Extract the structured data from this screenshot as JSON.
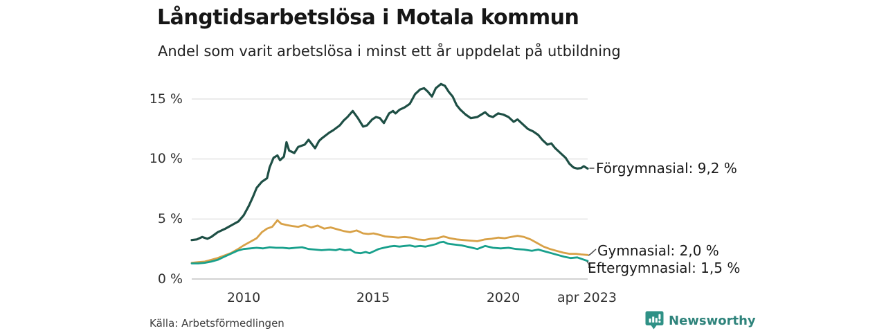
{
  "header": {
    "title": "Långtidsarbetslösa i Motala kommun",
    "subtitle": "Andel som varit arbetslösa i minst ett år uppdelat på utbildning"
  },
  "footer": {
    "source": "Källa: Arbetsförmedlingen",
    "brand": {
      "name": "Newsworthy",
      "icon": "newsworthy-chart-bubble-icon",
      "text_color": "#2e837b",
      "icon_color": "#2f9186"
    }
  },
  "chart_data": {
    "type": "line",
    "title": "Långtidsarbetslösa i Motala kommun",
    "subtitle": "Andel som varit arbetslösa i minst ett år uppdelat på utbildning",
    "xlabel": "",
    "ylabel": "",
    "unit": "%",
    "grid": true,
    "legend_position": "end-of-line labels, right of plot",
    "x_axis": {
      "range": [
        2008.0,
        2023.25
      ],
      "tick_labels": [
        "2010",
        "2015",
        "2020",
        "apr 2023"
      ],
      "tick_values": [
        2010,
        2015,
        2020,
        2023.25
      ]
    },
    "y_axis": {
      "range": [
        0,
        15
      ],
      "tick_labels_top_to_bottom": [
        "15 %",
        "10 %",
        "5 %",
        "0 %"
      ],
      "grid_values": [
        15,
        10,
        5,
        0
      ]
    },
    "style": {
      "grid_color": "#e4e4e4",
      "axis_line_color": "#c4c4c4",
      "background": "#ffffff"
    },
    "series": [
      {
        "name": "Förgymnasial",
        "end_label": "Förgymnasial: 9,2 %",
        "end_value": "9,2 %",
        "color": "#1e4f45",
        "stroke_width": 3.2,
        "points": [
          [
            2008.0,
            3.25
          ],
          [
            2008.2,
            3.3
          ],
          [
            2008.4,
            3.5
          ],
          [
            2008.6,
            3.35
          ],
          [
            2008.75,
            3.5
          ],
          [
            2009.0,
            3.9
          ],
          [
            2009.3,
            4.2
          ],
          [
            2009.55,
            4.5
          ],
          [
            2009.8,
            4.8
          ],
          [
            2010.0,
            5.3
          ],
          [
            2010.2,
            6.1
          ],
          [
            2010.35,
            6.8
          ],
          [
            2010.5,
            7.6
          ],
          [
            2010.7,
            8.1
          ],
          [
            2010.9,
            8.4
          ],
          [
            2011.0,
            9.3
          ],
          [
            2011.15,
            10.1
          ],
          [
            2011.3,
            10.3
          ],
          [
            2011.4,
            9.9
          ],
          [
            2011.55,
            10.2
          ],
          [
            2011.65,
            11.4
          ],
          [
            2011.75,
            10.7
          ],
          [
            2011.95,
            10.5
          ],
          [
            2012.1,
            11.0
          ],
          [
            2012.35,
            11.2
          ],
          [
            2012.5,
            11.6
          ],
          [
            2012.75,
            10.9
          ],
          [
            2012.9,
            11.5
          ],
          [
            2013.0,
            11.7
          ],
          [
            2013.3,
            12.2
          ],
          [
            2013.45,
            12.4
          ],
          [
            2013.7,
            12.8
          ],
          [
            2013.85,
            13.2
          ],
          [
            2014.0,
            13.5
          ],
          [
            2014.2,
            14.0
          ],
          [
            2014.4,
            13.4
          ],
          [
            2014.6,
            12.7
          ],
          [
            2014.75,
            12.8
          ],
          [
            2014.95,
            13.3
          ],
          [
            2015.1,
            13.5
          ],
          [
            2015.25,
            13.4
          ],
          [
            2015.4,
            13.0
          ],
          [
            2015.6,
            13.8
          ],
          [
            2015.75,
            14.0
          ],
          [
            2015.85,
            13.8
          ],
          [
            2016.0,
            14.1
          ],
          [
            2016.2,
            14.3
          ],
          [
            2016.4,
            14.6
          ],
          [
            2016.6,
            15.4
          ],
          [
            2016.8,
            15.8
          ],
          [
            2016.95,
            15.9
          ],
          [
            2017.1,
            15.6
          ],
          [
            2017.25,
            15.2
          ],
          [
            2017.4,
            15.9
          ],
          [
            2017.6,
            16.25
          ],
          [
            2017.75,
            16.1
          ],
          [
            2017.9,
            15.6
          ],
          [
            2018.05,
            15.2
          ],
          [
            2018.2,
            14.5
          ],
          [
            2018.35,
            14.1
          ],
          [
            2018.55,
            13.7
          ],
          [
            2018.75,
            13.4
          ],
          [
            2019.0,
            13.5
          ],
          [
            2019.3,
            13.9
          ],
          [
            2019.45,
            13.6
          ],
          [
            2019.6,
            13.5
          ],
          [
            2019.8,
            13.8
          ],
          [
            2020.0,
            13.7
          ],
          [
            2020.2,
            13.5
          ],
          [
            2020.4,
            13.1
          ],
          [
            2020.55,
            13.3
          ],
          [
            2020.75,
            12.9
          ],
          [
            2020.95,
            12.5
          ],
          [
            2021.15,
            12.3
          ],
          [
            2021.35,
            12.0
          ],
          [
            2021.5,
            11.6
          ],
          [
            2021.7,
            11.2
          ],
          [
            2021.85,
            11.3
          ],
          [
            2022.0,
            10.9
          ],
          [
            2022.2,
            10.5
          ],
          [
            2022.4,
            10.1
          ],
          [
            2022.55,
            9.6
          ],
          [
            2022.7,
            9.3
          ],
          [
            2022.85,
            9.2
          ],
          [
            2023.0,
            9.25
          ],
          [
            2023.1,
            9.4
          ],
          [
            2023.25,
            9.2
          ]
        ]
      },
      {
        "name": "Gymnasial",
        "end_label": "Gymnasial: 2,0 %",
        "end_value": "2,0 %",
        "color": "#d8a147",
        "stroke_width": 2.8,
        "points": [
          [
            2008.0,
            1.35
          ],
          [
            2008.25,
            1.4
          ],
          [
            2008.5,
            1.45
          ],
          [
            2008.75,
            1.6
          ],
          [
            2009.0,
            1.75
          ],
          [
            2009.25,
            1.95
          ],
          [
            2009.5,
            2.15
          ],
          [
            2009.75,
            2.45
          ],
          [
            2010.0,
            2.8
          ],
          [
            2010.25,
            3.1
          ],
          [
            2010.5,
            3.4
          ],
          [
            2010.7,
            3.9
          ],
          [
            2010.9,
            4.2
          ],
          [
            2011.1,
            4.35
          ],
          [
            2011.3,
            4.9
          ],
          [
            2011.45,
            4.6
          ],
          [
            2011.65,
            4.5
          ],
          [
            2011.9,
            4.4
          ],
          [
            2012.1,
            4.35
          ],
          [
            2012.35,
            4.5
          ],
          [
            2012.6,
            4.3
          ],
          [
            2012.85,
            4.45
          ],
          [
            2013.1,
            4.2
          ],
          [
            2013.35,
            4.3
          ],
          [
            2013.6,
            4.15
          ],
          [
            2013.85,
            4.0
          ],
          [
            2014.1,
            3.9
          ],
          [
            2014.35,
            4.05
          ],
          [
            2014.6,
            3.8
          ],
          [
            2014.8,
            3.75
          ],
          [
            2015.0,
            3.8
          ],
          [
            2015.2,
            3.7
          ],
          [
            2015.45,
            3.55
          ],
          [
            2015.7,
            3.5
          ],
          [
            2015.95,
            3.45
          ],
          [
            2016.2,
            3.5
          ],
          [
            2016.45,
            3.45
          ],
          [
            2016.7,
            3.3
          ],
          [
            2016.95,
            3.25
          ],
          [
            2017.2,
            3.35
          ],
          [
            2017.45,
            3.4
          ],
          [
            2017.7,
            3.55
          ],
          [
            2017.95,
            3.4
          ],
          [
            2018.2,
            3.3
          ],
          [
            2018.45,
            3.25
          ],
          [
            2018.7,
            3.2
          ],
          [
            2019.0,
            3.15
          ],
          [
            2019.3,
            3.3
          ],
          [
            2019.55,
            3.35
          ],
          [
            2019.8,
            3.45
          ],
          [
            2020.05,
            3.4
          ],
          [
            2020.3,
            3.5
          ],
          [
            2020.55,
            3.6
          ],
          [
            2020.8,
            3.5
          ],
          [
            2021.05,
            3.3
          ],
          [
            2021.3,
            3.0
          ],
          [
            2021.55,
            2.7
          ],
          [
            2021.8,
            2.5
          ],
          [
            2022.05,
            2.35
          ],
          [
            2022.3,
            2.2
          ],
          [
            2022.55,
            2.1
          ],
          [
            2022.8,
            2.1
          ],
          [
            2023.0,
            2.05
          ],
          [
            2023.25,
            2.0
          ]
        ]
      },
      {
        "name": "Eftergymnasial",
        "end_label": "Eftergymnasial: 1,5 %",
        "end_value": "1,5 %",
        "color": "#18a08c",
        "stroke_width": 2.8,
        "points": [
          [
            2008.0,
            1.3
          ],
          [
            2008.25,
            1.3
          ],
          [
            2008.5,
            1.35
          ],
          [
            2008.75,
            1.45
          ],
          [
            2009.0,
            1.6
          ],
          [
            2009.25,
            1.85
          ],
          [
            2009.5,
            2.1
          ],
          [
            2009.75,
            2.35
          ],
          [
            2010.0,
            2.5
          ],
          [
            2010.25,
            2.55
          ],
          [
            2010.5,
            2.6
          ],
          [
            2010.75,
            2.55
          ],
          [
            2011.0,
            2.65
          ],
          [
            2011.25,
            2.6
          ],
          [
            2011.5,
            2.6
          ],
          [
            2011.75,
            2.55
          ],
          [
            2012.0,
            2.6
          ],
          [
            2012.25,
            2.65
          ],
          [
            2012.5,
            2.5
          ],
          [
            2012.75,
            2.45
          ],
          [
            2013.0,
            2.4
          ],
          [
            2013.3,
            2.45
          ],
          [
            2013.55,
            2.4
          ],
          [
            2013.7,
            2.5
          ],
          [
            2013.9,
            2.4
          ],
          [
            2014.1,
            2.45
          ],
          [
            2014.3,
            2.2
          ],
          [
            2014.5,
            2.15
          ],
          [
            2014.7,
            2.25
          ],
          [
            2014.85,
            2.15
          ],
          [
            2015.0,
            2.3
          ],
          [
            2015.2,
            2.5
          ],
          [
            2015.4,
            2.6
          ],
          [
            2015.6,
            2.7
          ],
          [
            2015.8,
            2.75
          ],
          [
            2016.0,
            2.7
          ],
          [
            2016.2,
            2.75
          ],
          [
            2016.4,
            2.8
          ],
          [
            2016.6,
            2.7
          ],
          [
            2016.8,
            2.75
          ],
          [
            2017.0,
            2.7
          ],
          [
            2017.2,
            2.8
          ],
          [
            2017.4,
            2.9
          ],
          [
            2017.55,
            3.05
          ],
          [
            2017.7,
            3.1
          ],
          [
            2017.85,
            2.95
          ],
          [
            2018.0,
            2.9
          ],
          [
            2018.2,
            2.85
          ],
          [
            2018.4,
            2.8
          ],
          [
            2018.6,
            2.7
          ],
          [
            2018.8,
            2.6
          ],
          [
            2019.0,
            2.5
          ],
          [
            2019.3,
            2.75
          ],
          [
            2019.6,
            2.6
          ],
          [
            2019.9,
            2.55
          ],
          [
            2020.2,
            2.6
          ],
          [
            2020.5,
            2.5
          ],
          [
            2020.8,
            2.45
          ],
          [
            2021.1,
            2.35
          ],
          [
            2021.35,
            2.45
          ],
          [
            2021.6,
            2.3
          ],
          [
            2021.85,
            2.15
          ],
          [
            2022.1,
            2.0
          ],
          [
            2022.35,
            1.85
          ],
          [
            2022.6,
            1.75
          ],
          [
            2022.85,
            1.8
          ],
          [
            2023.05,
            1.65
          ],
          [
            2023.25,
            1.5
          ]
        ]
      }
    ],
    "source": "Källa: Arbetsförmedlingen"
  }
}
